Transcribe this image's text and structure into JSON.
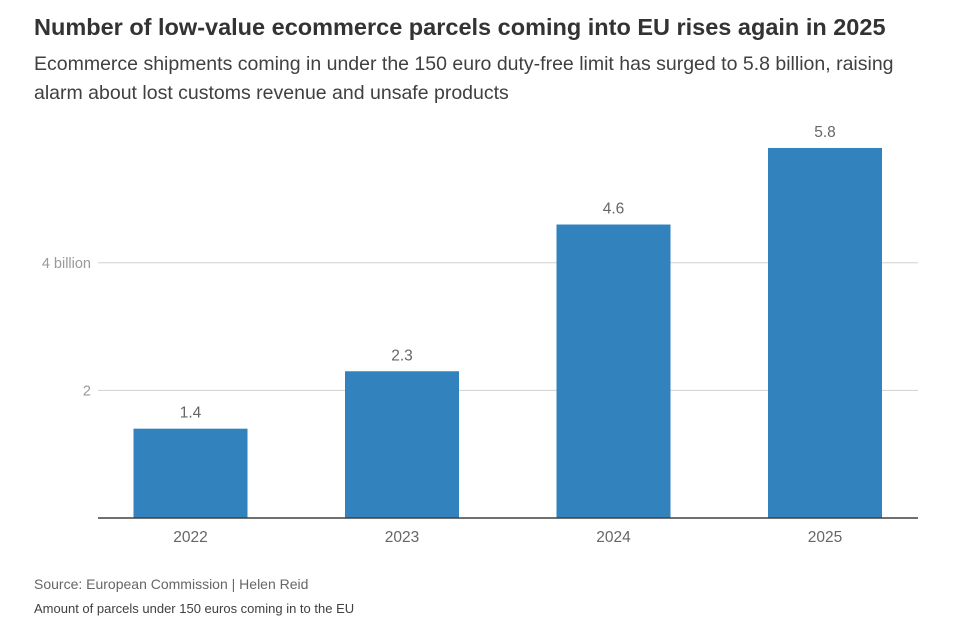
{
  "header": {
    "title": "Number of low-value ecommerce parcels coming into EU rises again in 2025",
    "subtitle": "Ecommerce shipments coming in under the 150 euro duty-free limit has surged to 5.8 billion, raising alarm about lost customs revenue and  unsafe products"
  },
  "footer": {
    "source": "Source: European Commission | Helen Reid",
    "note": "Amount of parcels under 150 euros coming in to the EU"
  },
  "chart_data": {
    "type": "bar",
    "title": "Number of low-value ecommerce parcels coming into EU rises again in 2025",
    "xlabel": "",
    "ylabel": "",
    "categories": [
      "2022",
      "2023",
      "2024",
      "2025"
    ],
    "values": [
      1.4,
      2.3,
      4.6,
      5.8
    ],
    "value_labels": [
      "1.4",
      "2.3",
      "4.6",
      "5.8"
    ],
    "y_ticks": [
      {
        "value": 2,
        "label": "2"
      },
      {
        "value": 4,
        "label": "4 billion"
      }
    ],
    "ylim": [
      0,
      6
    ],
    "grid": true,
    "bar_color": "#3182bd",
    "grid_color": "#d0d0d0",
    "axis_color": "#404040"
  }
}
